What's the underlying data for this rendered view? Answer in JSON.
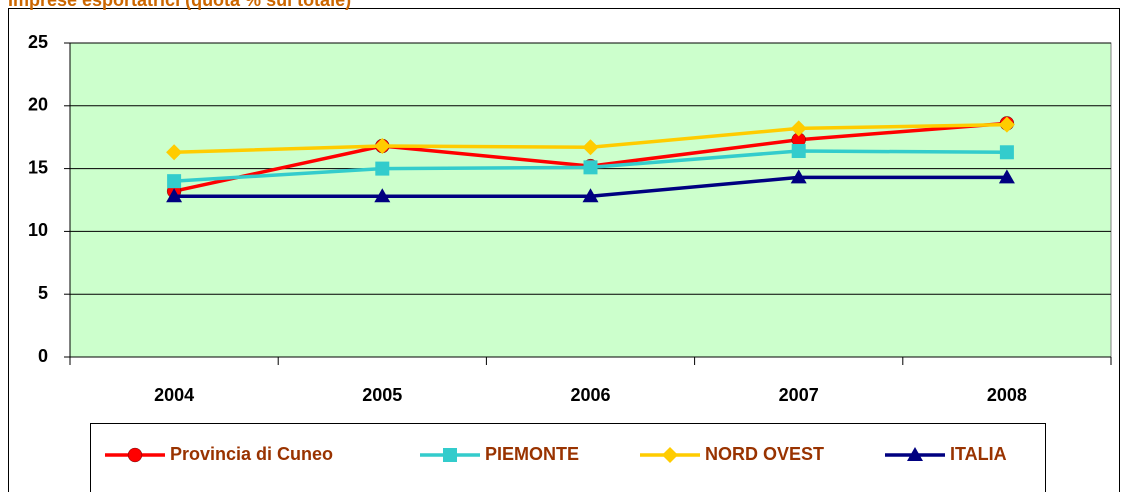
{
  "chart_data": {
    "type": "line",
    "title": "Imprese esportatrici (quota % sul totale)",
    "categories": [
      "2004",
      "2005",
      "2006",
      "2007",
      "2008"
    ],
    "series": [
      {
        "name": "Provincia di Cuneo",
        "color": "#ff0000",
        "marker": "circle",
        "values": [
          13.2,
          16.8,
          15.2,
          17.3,
          18.6
        ]
      },
      {
        "name": "PIEMONTE",
        "color": "#33cccc",
        "marker": "square",
        "values": [
          14.0,
          15.0,
          15.1,
          16.4,
          16.3
        ]
      },
      {
        "name": "NORD OVEST",
        "color": "#ffcc00",
        "marker": "diamond",
        "values": [
          16.3,
          16.8,
          16.7,
          18.2,
          18.5
        ]
      },
      {
        "name": "ITALIA",
        "color": "#000080",
        "marker": "triangle",
        "values": [
          12.8,
          12.8,
          12.8,
          14.3,
          14.3
        ]
      }
    ],
    "ylim": [
      0,
      25
    ],
    "yticks": [
      0,
      5,
      10,
      15,
      20,
      25
    ],
    "grid": true,
    "legend": "bottom"
  }
}
